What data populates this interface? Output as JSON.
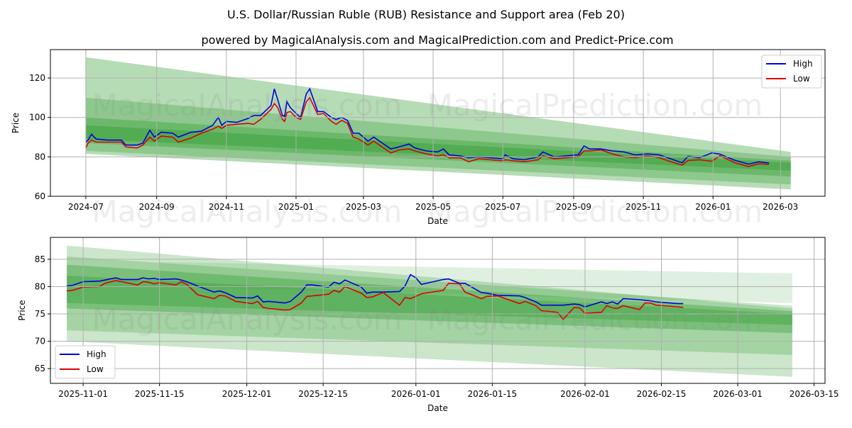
{
  "title": "U.S. Dollar/Russian Ruble (RUB) Resistance and Support area (Feb 20)",
  "subtitle": "powered by MagicalAnalysis.com and MagicalPrediction.com and Predict-Price.com",
  "watermarks": [
    "MagicalAnalysis.com",
    "MagicalPrediction.com"
  ],
  "colors": {
    "high": "#0000dd",
    "low": "#dd0000",
    "band": "#2e9a2e"
  },
  "chart_data": [
    {
      "type": "area",
      "xlabel": "Date",
      "ylabel": "Price",
      "xlim": [
        "2024-05-31",
        "2026-04-09"
      ],
      "ylim": [
        60,
        134.4
      ],
      "grid": true,
      "legend": "top-right",
      "xticks": [
        "2024-07-01",
        "2024-09-01",
        "2024-11-01",
        "2025-01-01",
        "2025-03-01",
        "2025-05-01",
        "2025-07-01",
        "2025-09-01",
        "2025-11-01",
        "2026-01-01",
        "2026-03-01"
      ],
      "xtick_labels": [
        "2024-07",
        "2024-09",
        "2024-11",
        "2025-01",
        "2025-03",
        "2025-05",
        "2025-07",
        "2025-09",
        "2025-11",
        "2026-01",
        "2026-03"
      ],
      "yticks": [
        60,
        80,
        100,
        120
      ],
      "legend_entries": [
        "High",
        "Low"
      ],
      "bands": [
        {
          "start": "2024-07-01",
          "end": "2026-03-10",
          "upper": [
            130.5,
            82.5
          ],
          "lower": [
            81.5,
            63.5
          ],
          "opacity": 0.35
        },
        {
          "start": "2024-07-01",
          "end": "2026-03-10",
          "upper": [
            110,
            80
          ],
          "lower": [
            83,
            66
          ],
          "opacity": 0.3
        },
        {
          "start": "2024-07-01",
          "end": "2026-03-10",
          "upper": [
            100,
            78
          ],
          "lower": [
            87,
            70
          ],
          "opacity": 0.35
        },
        {
          "start": "2024-07-01",
          "end": "2026-03-10",
          "upper": [
            96,
            77
          ],
          "lower": [
            89,
            73
          ],
          "opacity": 0.4
        }
      ],
      "series": {
        "dates": [
          "2024-07-01",
          "2024-07-03",
          "2024-07-06",
          "2024-07-10",
          "2024-07-20",
          "2024-08-01",
          "2024-08-05",
          "2024-08-15",
          "2024-08-20",
          "2024-08-26",
          "2024-08-30",
          "2024-09-05",
          "2024-09-15",
          "2024-09-20",
          "2024-10-01",
          "2024-10-10",
          "2024-10-20",
          "2024-10-25",
          "2024-10-28",
          "2024-11-01",
          "2024-11-10",
          "2024-11-20",
          "2024-11-25",
          "2024-12-01",
          "2024-12-10",
          "2024-12-13",
          "2024-12-16",
          "2024-12-20",
          "2024-12-22",
          "2024-12-24",
          "2024-12-27",
          "2025-01-01",
          "2025-01-05",
          "2025-01-10",
          "2025-01-13",
          "2025-01-20",
          "2025-01-25",
          "2025-02-01",
          "2025-02-05",
          "2025-02-10",
          "2025-02-15",
          "2025-02-20",
          "2025-02-25",
          "2025-03-05",
          "2025-03-10",
          "2025-03-15",
          "2025-03-25",
          "2025-04-01",
          "2025-04-10",
          "2025-04-15",
          "2025-04-25",
          "2025-05-05",
          "2025-05-10",
          "2025-05-15",
          "2025-05-25",
          "2025-06-01",
          "2025-06-10",
          "2025-06-20",
          "2025-07-01",
          "2025-07-03",
          "2025-07-10",
          "2025-07-20",
          "2025-08-01",
          "2025-08-05",
          "2025-08-15",
          "2025-08-25",
          "2025-09-05",
          "2025-09-10",
          "2025-09-15",
          "2025-09-25",
          "2025-10-05",
          "2025-10-15",
          "2025-10-25",
          "2025-11-05",
          "2025-11-15",
          "2025-11-25",
          "2025-12-05",
          "2025-12-10",
          "2025-12-20",
          "2025-12-31",
          "2026-01-07",
          "2026-01-20",
          "2026-02-01",
          "2026-02-10",
          "2026-02-19"
        ],
        "high": [
          87.5,
          88.5,
          91.5,
          89,
          88.5,
          88.5,
          86,
          86,
          87,
          93.5,
          90,
          92.5,
          92,
          90,
          92.5,
          93,
          96,
          100,
          96,
          98,
          97.5,
          99.5,
          101,
          101,
          106,
          114.5,
          109,
          101,
          100.5,
          108,
          105,
          102,
          100,
          112,
          114.5,
          103,
          103,
          100,
          99,
          100,
          98.5,
          92,
          92,
          88,
          90,
          88,
          84,
          85,
          86.5,
          84.5,
          83,
          82.5,
          84,
          81,
          80.5,
          79.5,
          80,
          79.5,
          79,
          81,
          79,
          78.5,
          80,
          82.5,
          80,
          80.5,
          81,
          85.5,
          84,
          84,
          83,
          82.5,
          81,
          81.5,
          81,
          79,
          77,
          80.3,
          79.5,
          82,
          81.4,
          78.3,
          76.3,
          77.5,
          76.9
        ],
        "low": [
          84.5,
          87,
          88.5,
          87.5,
          87.5,
          87.5,
          85,
          84.5,
          86,
          90,
          88,
          90.5,
          90,
          87.5,
          89.5,
          92,
          94,
          95.5,
          94.5,
          96,
          96.5,
          97,
          96.5,
          99,
          104,
          107,
          105,
          99,
          98,
          102.5,
          103,
          100,
          99,
          108,
          110,
          101.5,
          102,
          98,
          96.5,
          98.5,
          97,
          90,
          89,
          86,
          88,
          86,
          82,
          83.5,
          84,
          83,
          81.5,
          80.5,
          81,
          79.5,
          79.5,
          77.5,
          79,
          78.5,
          78,
          78.5,
          78,
          77.5,
          78.5,
          80.5,
          79,
          79.5,
          80,
          83,
          83,
          83.5,
          81.5,
          80,
          79.5,
          80.5,
          79.5,
          77.5,
          75.8,
          78.2,
          78.5,
          77.8,
          80.6,
          77,
          75.1,
          76.5,
          76.2
        ]
      }
    },
    {
      "type": "area",
      "xlabel": "Date",
      "ylabel": "Price",
      "xlim": [
        "2025-10-26",
        "2026-03-17"
      ],
      "ylim": [
        62.3,
        89
      ],
      "grid": true,
      "legend": "lower-left",
      "xticks": [
        "2025-11-01",
        "2025-11-15",
        "2025-12-01",
        "2025-12-15",
        "2026-01-01",
        "2026-01-15",
        "2026-02-01",
        "2026-02-15",
        "2026-03-01",
        "2026-03-15"
      ],
      "xtick_labels": [
        "2025-11-01",
        "2025-11-15",
        "2025-12-01",
        "2025-12-15",
        "2026-01-01",
        "2026-01-15",
        "2026-02-01",
        "2026-02-15",
        "2026-03-01",
        "2026-03-15"
      ],
      "yticks": [
        65,
        70,
        75,
        80,
        85
      ],
      "legend_entries": [
        "High",
        "Low"
      ],
      "bands": [
        {
          "start": "2025-11-15",
          "end": "2026-03-11",
          "upper": [
            84.5,
            82.4
          ],
          "lower": [
            80,
            77
          ],
          "opacity": 0.15
        },
        {
          "start": "2025-10-29",
          "end": "2026-03-11",
          "upper": [
            87.5,
            76
          ],
          "lower": [
            70,
            63.5
          ],
          "opacity": 0.25
        },
        {
          "start": "2025-10-29",
          "end": "2026-03-11",
          "upper": [
            85.5,
            76.5
          ],
          "lower": [
            72,
            67.5
          ],
          "opacity": 0.25
        },
        {
          "start": "2025-10-29",
          "end": "2026-03-11",
          "upper": [
            84,
            75.5
          ],
          "lower": [
            76,
            71.5
          ],
          "opacity": 0.35
        },
        {
          "start": "2025-10-29",
          "end": "2026-03-11",
          "upper": [
            82,
            75
          ],
          "lower": [
            77,
            73
          ],
          "opacity": 0.35
        }
      ],
      "series": {
        "dates": [
          "2025-10-29",
          "2025-10-30",
          "2025-11-01",
          "2025-11-04",
          "2025-11-05",
          "2025-11-07",
          "2025-11-08",
          "2025-11-11",
          "2025-11-12",
          "2025-11-13",
          "2025-11-14",
          "2025-11-15",
          "2025-11-18",
          "2025-11-19",
          "2025-11-20",
          "2025-11-22",
          "2025-11-25",
          "2025-11-26",
          "2025-11-27",
          "2025-11-29",
          "2025-12-02",
          "2025-12-03",
          "2025-12-04",
          "2025-12-05",
          "2025-12-08",
          "2025-12-09",
          "2025-12-11",
          "2025-12-12",
          "2025-12-13",
          "2025-12-16",
          "2025-12-17",
          "2025-12-18",
          "2025-12-19",
          "2025-12-22",
          "2025-12-23",
          "2025-12-24",
          "2025-12-26",
          "2025-12-29",
          "2025-12-30",
          "2025-12-31",
          "2026-01-01",
          "2026-01-02",
          "2026-01-06",
          "2026-01-07",
          "2026-01-09",
          "2026-01-10",
          "2026-01-13",
          "2026-01-14",
          "2026-01-16",
          "2026-01-20",
          "2026-01-21",
          "2026-01-23",
          "2026-01-24",
          "2026-01-27",
          "2026-01-28",
          "2026-01-30",
          "2026-01-31",
          "2026-02-01",
          "2026-02-04",
          "2026-02-05",
          "2026-02-06",
          "2026-02-07",
          "2026-02-08",
          "2026-02-11",
          "2026-02-12",
          "2026-02-13",
          "2026-02-14",
          "2026-02-18",
          "2026-02-19"
        ],
        "high": [
          80.1,
          80.2,
          80.9,
          81.0,
          81.2,
          81.6,
          81.3,
          81.3,
          81.6,
          81.4,
          81.5,
          81.3,
          81.4,
          81.2,
          80.9,
          80.1,
          79.0,
          79.2,
          78.9,
          78.0,
          77.9,
          78.3,
          77.2,
          77.3,
          77.0,
          77.3,
          79.0,
          80.3,
          80.3,
          79.9,
          80.8,
          80.5,
          81.2,
          79.9,
          78.8,
          79.0,
          79.0,
          79.1,
          80.1,
          82.2,
          81.6,
          80.4,
          81.3,
          81.4,
          80.6,
          80.6,
          78.9,
          78.8,
          78.4,
          78.3,
          78.0,
          77.2,
          76.6,
          76.6,
          76.6,
          76.8,
          76.7,
          76.3,
          77.2,
          76.9,
          77.2,
          76.8,
          77.8,
          77.6,
          77.5,
          77.4,
          77.2,
          76.9,
          76.9
        ],
        "low": [
          79.2,
          79.3,
          79.9,
          80.0,
          80.6,
          81.1,
          80.9,
          80.3,
          80.9,
          80.8,
          80.5,
          80.7,
          80.3,
          80.9,
          80.4,
          78.5,
          77.8,
          78.4,
          78.3,
          77.3,
          76.9,
          77.3,
          76.2,
          76.0,
          75.7,
          75.8,
          77.0,
          78.2,
          78.3,
          78.6,
          79.3,
          79.0,
          80.0,
          78.8,
          78.0,
          78.1,
          78.9,
          76.6,
          78.0,
          77.8,
          78.2,
          78.7,
          79.3,
          80.6,
          80.5,
          79.0,
          77.8,
          78.2,
          78.3,
          76.9,
          77.3,
          76.5,
          75.6,
          75.3,
          74.0,
          76.2,
          76.1,
          75.1,
          75.3,
          76.5,
          76.1,
          76.0,
          76.5,
          75.8,
          77.0,
          77.0,
          76.6,
          76.3,
          76.2
        ]
      }
    }
  ]
}
